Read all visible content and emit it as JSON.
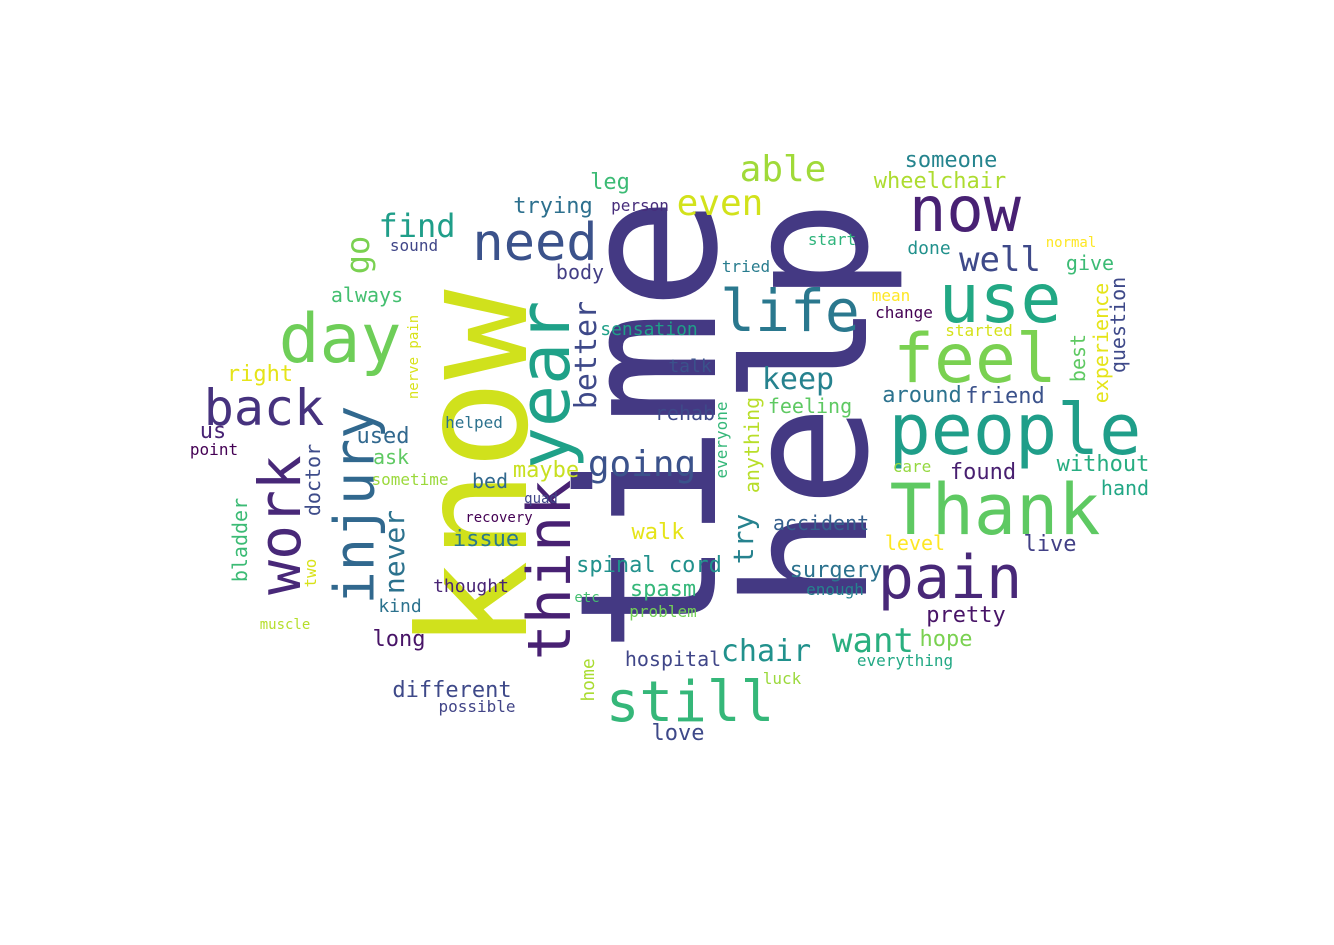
{
  "words": [
    {
      "text": "help",
      "color": "#443983",
      "rotate": -90
    },
    {
      "text": "time",
      "color": "#443983",
      "rotate": -90
    },
    {
      "text": "know",
      "color": "#d0e11c",
      "rotate": -90
    },
    {
      "text": "year",
      "color": "#1fa188",
      "rotate": -90
    },
    {
      "text": "think",
      "color": "#482173",
      "rotate": -90
    },
    {
      "text": "injury",
      "color": "#31688e",
      "rotate": -90
    },
    {
      "text": "work",
      "color": "#482878",
      "rotate": -90
    },
    {
      "text": "now",
      "color": "#482173",
      "rotate": 0
    },
    {
      "text": "use",
      "color": "#22a884",
      "rotate": 0
    },
    {
      "text": "feel",
      "color": "#7ad151",
      "rotate": 0
    },
    {
      "text": "people",
      "color": "#1f9e89",
      "rotate": 0
    },
    {
      "text": "Thank",
      "color": "#5ec962",
      "rotate": 0
    },
    {
      "text": "pain",
      "color": "#482878",
      "rotate": 0
    },
    {
      "text": "day",
      "color": "#6ece58",
      "rotate": 0
    },
    {
      "text": "back",
      "color": "#46327e",
      "rotate": 0
    },
    {
      "text": "need",
      "color": "#3b528b",
      "rotate": 0
    },
    {
      "text": "life",
      "color": "#2a788e",
      "rotate": 0
    },
    {
      "text": "still",
      "color": "#35b779",
      "rotate": 0
    },
    {
      "text": "going",
      "color": "#3b528b",
      "rotate": 0
    },
    {
      "text": "able",
      "color": "#a0da39",
      "rotate": 0
    },
    {
      "text": "even",
      "color": "#d2e21b",
      "rotate": 0
    },
    {
      "text": "find",
      "color": "#1f9e89",
      "rotate": 0
    },
    {
      "text": "go",
      "color": "#7ad151",
      "rotate": -90
    },
    {
      "text": "well",
      "color": "#3e4989",
      "rotate": 0
    },
    {
      "text": "want",
      "color": "#29af7f",
      "rotate": 0
    },
    {
      "text": "keep",
      "color": "#26828e",
      "rotate": 0
    },
    {
      "text": "chair",
      "color": "#21918c",
      "rotate": 0
    },
    {
      "text": "better",
      "color": "#3e4989",
      "rotate": -90
    },
    {
      "text": "never",
      "color": "#2c728e",
      "rotate": -90
    },
    {
      "text": "try",
      "color": "#26828e",
      "rotate": -90
    },
    {
      "text": "someone",
      "color": "#25848e",
      "rotate": 0
    },
    {
      "text": "wheelchair",
      "color": "#addc30",
      "rotate": 0
    },
    {
      "text": "trying",
      "color": "#2d708e",
      "rotate": 0
    },
    {
      "text": "leg",
      "color": "#3cbb75",
      "rotate": 0
    },
    {
      "text": "person",
      "color": "#472d7b",
      "rotate": 0
    },
    {
      "text": "sound",
      "color": "#404688",
      "rotate": 0
    },
    {
      "text": "start",
      "color": "#2fb47c",
      "rotate": 0
    },
    {
      "text": "normal",
      "color": "#fde725",
      "rotate": 0
    },
    {
      "text": "done",
      "color": "#21918c",
      "rotate": 0
    },
    {
      "text": "give",
      "color": "#3cbb75",
      "rotate": 0
    },
    {
      "text": "always",
      "color": "#44bf70",
      "rotate": 0
    },
    {
      "text": "body",
      "color": "#433e85",
      "rotate": 0
    },
    {
      "text": "tried",
      "color": "#287c8e",
      "rotate": 0
    },
    {
      "text": "mean",
      "color": "#fde725",
      "rotate": 0
    },
    {
      "text": "change",
      "color": "#440154",
      "rotate": 0
    },
    {
      "text": "started",
      "color": "#d5e21a",
      "rotate": 0
    },
    {
      "text": "sensation",
      "color": "#1fa088",
      "rotate": 0
    },
    {
      "text": "right",
      "color": "#e5e419",
      "rotate": 0
    },
    {
      "text": "nerve pain",
      "color": "#d8e219",
      "rotate": -90
    },
    {
      "text": "talk",
      "color": "#3b528b",
      "rotate": 0
    },
    {
      "text": "around",
      "color": "#2c728e",
      "rotate": 0
    },
    {
      "text": "friend",
      "color": "#3b528b",
      "rotate": 0
    },
    {
      "text": "best",
      "color": "#5ec962",
      "rotate": -90
    },
    {
      "text": "experience",
      "color": "#e5e419",
      "rotate": -90
    },
    {
      "text": "question",
      "color": "#3e4989",
      "rotate": -90
    },
    {
      "text": "feeling",
      "color": "#5ec962",
      "rotate": 0
    },
    {
      "text": "rehab",
      "color": "#3e4989",
      "rotate": 0
    },
    {
      "text": "anything",
      "color": "#b8de29",
      "rotate": -90
    },
    {
      "text": "everyone",
      "color": "#35b779",
      "rotate": -90
    },
    {
      "text": "us",
      "color": "#482475",
      "rotate": 0
    },
    {
      "text": "helped",
      "color": "#2c728e",
      "rotate": 0
    },
    {
      "text": "used",
      "color": "#31688e",
      "rotate": 0
    },
    {
      "text": "point",
      "color": "#440154",
      "rotate": 0
    },
    {
      "text": "ask",
      "color": "#5ec962",
      "rotate": 0
    },
    {
      "text": "care",
      "color": "#95d840",
      "rotate": 0
    },
    {
      "text": "found",
      "color": "#481f70",
      "rotate": 0
    },
    {
      "text": "without",
      "color": "#27ad81",
      "rotate": 0
    },
    {
      "text": "maybe",
      "color": "#c8e020",
      "rotate": 0
    },
    {
      "text": "sometime",
      "color": "#9bd93c",
      "rotate": 0
    },
    {
      "text": "bed",
      "color": "#31688e",
      "rotate": 0
    },
    {
      "text": "doctor",
      "color": "#3e4c8a",
      "rotate": -90
    },
    {
      "text": "hand",
      "color": "#22a785",
      "rotate": 0
    },
    {
      "text": "quad",
      "color": "#404688",
      "rotate": 0
    },
    {
      "text": "bladder",
      "color": "#3cbb75",
      "rotate": -90
    },
    {
      "text": "recovery",
      "color": "#440154",
      "rotate": 0
    },
    {
      "text": "walk",
      "color": "#e5e419",
      "rotate": 0
    },
    {
      "text": "accident",
      "color": "#355f8d",
      "rotate": 0
    },
    {
      "text": "issue",
      "color": "#2a788e",
      "rotate": 0
    },
    {
      "text": "level",
      "color": "#fde725",
      "rotate": 0
    },
    {
      "text": "live",
      "color": "#424086",
      "rotate": 0
    },
    {
      "text": "two",
      "color": "#d8e219",
      "rotate": -90
    },
    {
      "text": "spinal cord",
      "color": "#21918c",
      "rotate": 0
    },
    {
      "text": "surgery",
      "color": "#2c728e",
      "rotate": 0
    },
    {
      "text": "thought",
      "color": "#482475",
      "rotate": 0
    },
    {
      "text": "spasm",
      "color": "#35b779",
      "rotate": 0
    },
    {
      "text": "enough",
      "color": "#26828e",
      "rotate": 0
    },
    {
      "text": "kind",
      "color": "#2c728e",
      "rotate": 0
    },
    {
      "text": "etc",
      "color": "#44bf70",
      "rotate": 0
    },
    {
      "text": "problem",
      "color": "#73d056",
      "rotate": 0
    },
    {
      "text": "pretty",
      "color": "#481467",
      "rotate": 0
    },
    {
      "text": "muscle",
      "color": "#b5de2b",
      "rotate": 0
    },
    {
      "text": "long",
      "color": "#481467",
      "rotate": 0
    },
    {
      "text": "hope",
      "color": "#7ad151",
      "rotate": 0
    },
    {
      "text": "hospital",
      "color": "#404688",
      "rotate": 0
    },
    {
      "text": "everything",
      "color": "#22a884",
      "rotate": 0
    },
    {
      "text": "home",
      "color": "#aadc32",
      "rotate": -90
    },
    {
      "text": "luck",
      "color": "#9bd93c",
      "rotate": 0
    },
    {
      "text": "different",
      "color": "#3e4989",
      "rotate": 0
    },
    {
      "text": "possible",
      "color": "#414487",
      "rotate": 0
    },
    {
      "text": "love",
      "color": "#3e4989",
      "rotate": 0
    }
  ]
}
